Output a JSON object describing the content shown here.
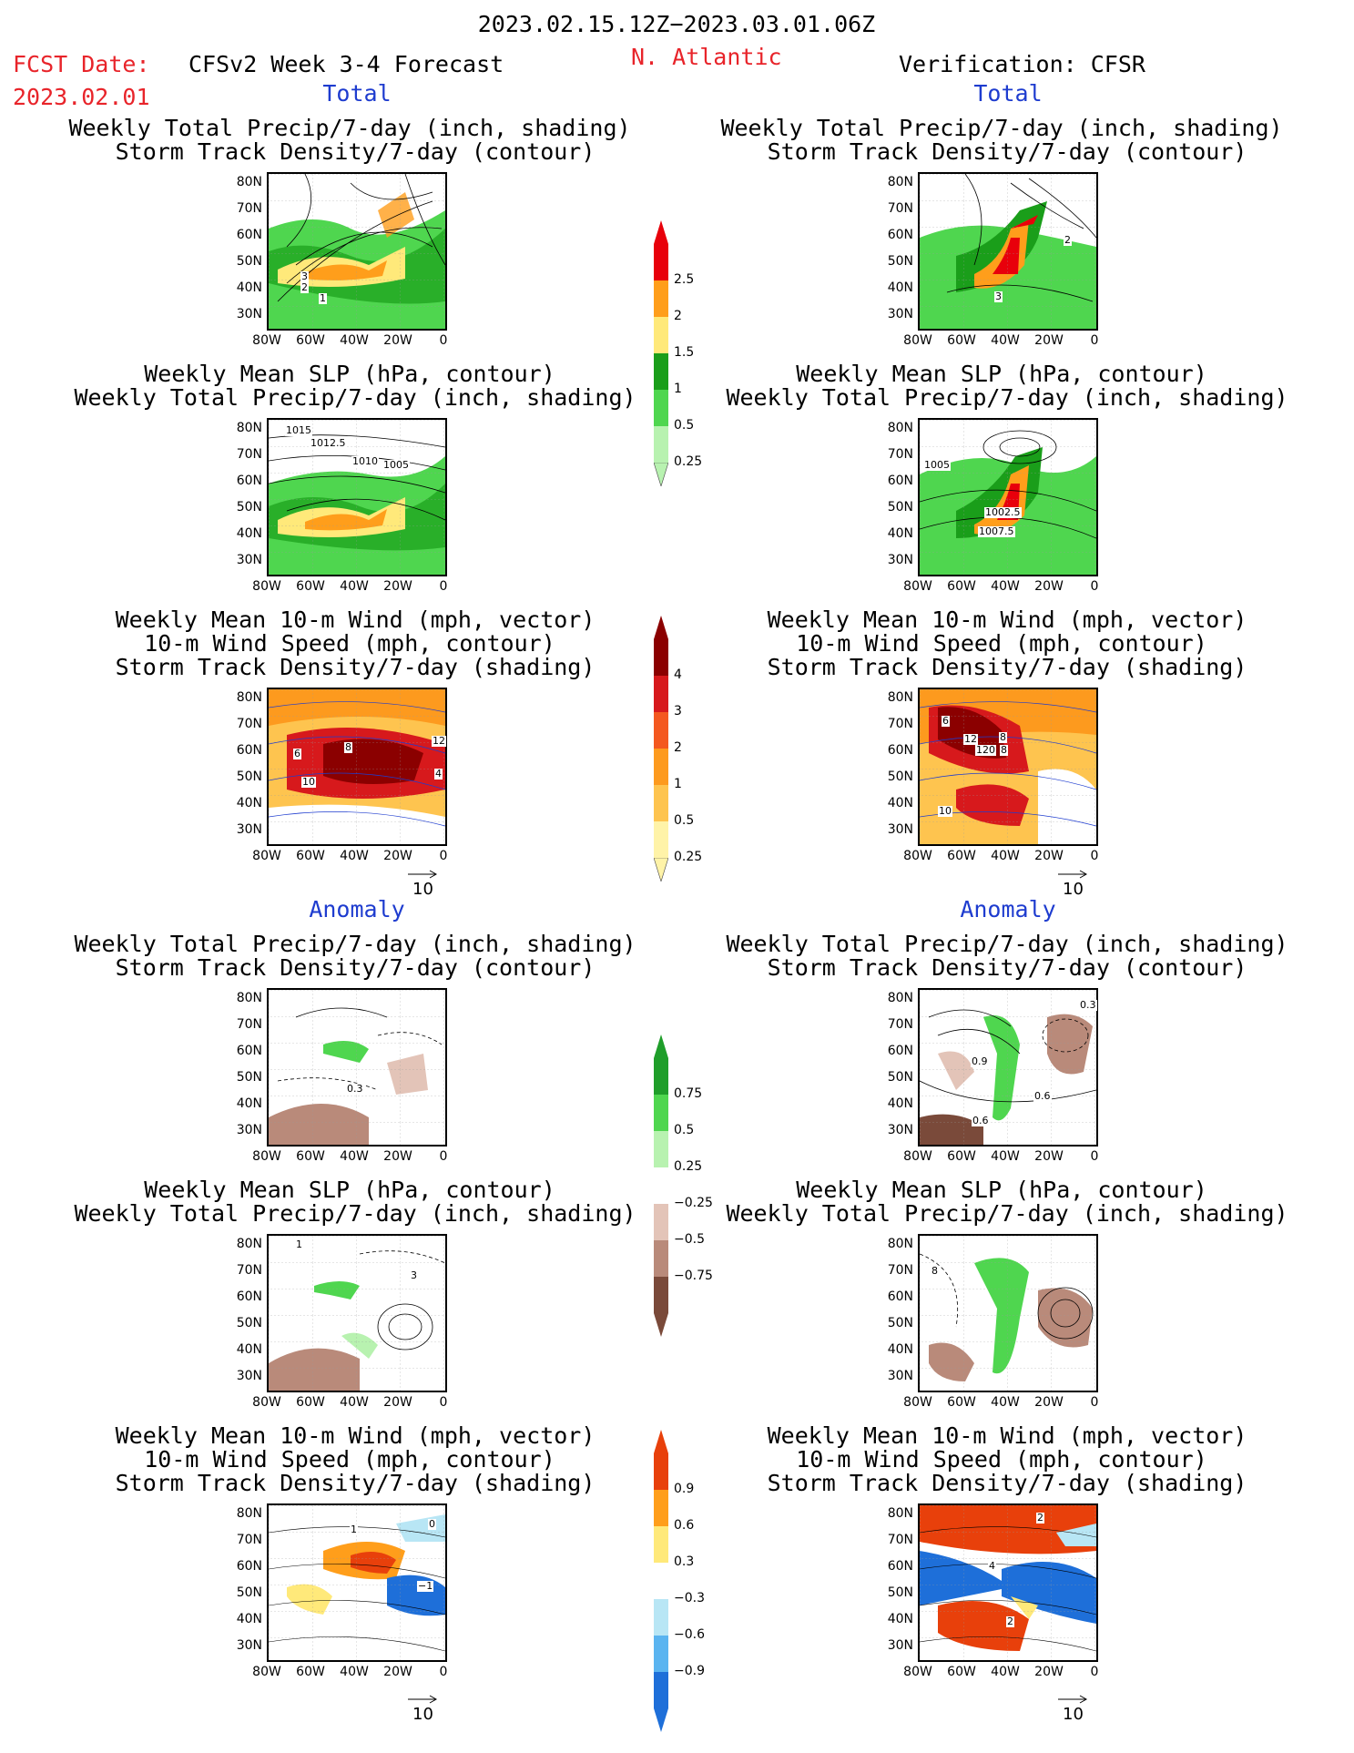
{
  "header": {
    "period": "2023.02.15.12Z−2023.03.01.06Z",
    "fcst_label": "FCST Date:",
    "fcst_date": "2023.02.01",
    "model": "CFSv2 Week 3-4 Forecast",
    "region": "N. Atlantic",
    "verification": "Verification: CFSR",
    "total_left": "Total",
    "total_right": "Total",
    "anomaly_left": "Anomaly",
    "anomaly_right": "Anomaly"
  },
  "titles": {
    "precip_track_1": "Weekly Total Precip/7-day (inch, shading)",
    "precip_track_2": "Storm Track Density/7-day (contour)",
    "slp_1": "Weekly Mean SLP (hPa, contour)",
    "slp_2": "Weekly Total Precip/7-day (inch, shading)",
    "wind_1": "Weekly Mean 10-m Wind (mph, vector)",
    "wind_2": "10-m Wind Speed (mph, contour)",
    "wind_3": "Storm Track Density/7-day (shading)"
  },
  "axes": {
    "lat": [
      "80N",
      "70N",
      "60N",
      "50N",
      "40N",
      "30N"
    ],
    "lon": [
      "80W",
      "60W",
      "40W",
      "20W",
      "0"
    ]
  },
  "vector_ref": "10",
  "colorbars": {
    "precip_total": {
      "colors": [
        "#e8000b",
        "#ff9e1b",
        "#ffe97a",
        "#1a9e1a",
        "#4fd64f",
        "#b8f2b0"
      ],
      "labels": [
        "2.5",
        "2",
        "1.5",
        "1",
        "0.5",
        "0.25"
      ]
    },
    "track_total": {
      "colors": [
        "#8b0000",
        "#d7191c",
        "#f4581f",
        "#fd9a1e",
        "#fec44f",
        "#fff3a8"
      ],
      "labels": [
        "4",
        "3",
        "2",
        "1",
        "0.5",
        "0.25"
      ]
    },
    "precip_anom": {
      "colors": [
        "#1f9e2a",
        "#4fd64f",
        "#b8f2b0",
        "#ffffff",
        "#e3c4b8",
        "#b98a7a",
        "#7a4a3a"
      ],
      "labels": [
        "0.75",
        "0.5",
        "0.25",
        "−0.25",
        "−0.5",
        "−0.75"
      ]
    },
    "track_anom": {
      "colors": [
        "#e8400b",
        "#ff9e1b",
        "#ffe97a",
        "#ffffff",
        "#b8e6f5",
        "#5ab4f0",
        "#1e6fd9"
      ],
      "labels": [
        "0.9",
        "0.6",
        "0.3",
        "−0.3",
        "−0.6",
        "−0.9"
      ]
    }
  },
  "panel_labels": {
    "p1L": [
      "3",
      "2",
      "1"
    ],
    "p1R": [
      "2",
      "3"
    ],
    "p2L": [
      "1015",
      "1012.5",
      "1010",
      "1005"
    ],
    "p2R": [
      "1005",
      "1002.5",
      "1007.5"
    ],
    "p3L": [
      "8",
      "12",
      "6",
      "10",
      "4"
    ],
    "p3R": [
      "6",
      "12",
      "8",
      "120",
      "8",
      "10"
    ],
    "p4L": [
      "0.3"
    ],
    "p4R": [
      "0.3",
      "0.9",
      "0.6",
      "0.6"
    ],
    "p5L": [
      "1",
      "3"
    ],
    "p5R": [
      "8"
    ],
    "p6L": [
      "0",
      "1",
      "−1"
    ],
    "p6R": [
      "2",
      "4",
      "2"
    ]
  }
}
